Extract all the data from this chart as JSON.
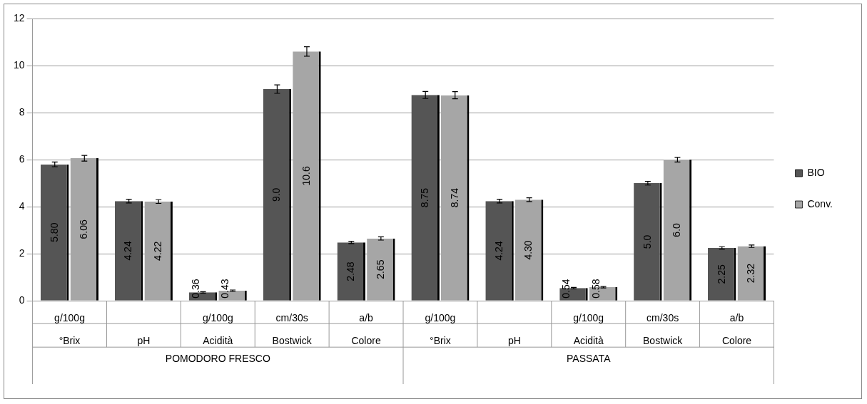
{
  "chart_data": {
    "type": "bar",
    "categories": [
      "g/100g\n°Brix",
      "\npH",
      "g/100g\nAcidità",
      "cm/30s\nBostwick",
      "a/b\nColore",
      "g/100g\n°Brix",
      "\npH",
      "g/100g\nAcidità",
      "cm/30s\nBostwick",
      "a/b\nColore"
    ],
    "series": [
      {
        "name": "BIO",
        "color": "#555555",
        "values": [
          5.8,
          4.24,
          0.36,
          9.0,
          2.48,
          8.75,
          4.24,
          0.54,
          5.0,
          2.25
        ],
        "value_labels": [
          "5.80",
          "4.24",
          "0.36",
          "9.0",
          "2.48",
          "8.75",
          "4.24",
          "0.54",
          "5.0",
          "2.25"
        ],
        "errors": [
          0.1,
          0.08,
          0.03,
          0.18,
          0.05,
          0.15,
          0.08,
          0.03,
          0.08,
          0.05
        ]
      },
      {
        "name": "Conv.",
        "color": "#a6a6a6",
        "values": [
          6.06,
          4.22,
          0.43,
          10.6,
          2.65,
          8.74,
          4.3,
          0.58,
          6.0,
          2.32
        ],
        "value_labels": [
          "6.06",
          "4.22",
          "0.43",
          "10.6",
          "2.65",
          "8.74",
          "4.30",
          "0.58",
          "6.0",
          "2.32"
        ],
        "errors": [
          0.12,
          0.08,
          0.03,
          0.2,
          0.07,
          0.15,
          0.08,
          0.03,
          0.1,
          0.05
        ]
      }
    ],
    "ylim": [
      0,
      12
    ],
    "yticks": [
      0,
      2,
      4,
      6,
      8,
      10,
      12
    ],
    "grid": "y",
    "legend": "right",
    "annotations": [
      "POMODORO FRESCO",
      "PASSATA"
    ]
  }
}
